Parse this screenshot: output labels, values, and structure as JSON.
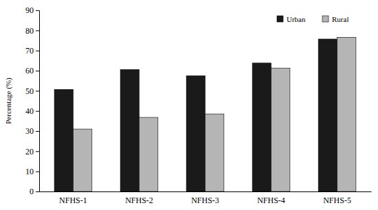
{
  "chart_data": {
    "type": "bar",
    "categories": [
      "NFHS-1",
      "NFHS-2",
      "NFHS-3",
      "NFHS-4",
      "NFHS-5"
    ],
    "series": [
      {
        "name": "Urban",
        "color": "#1a1a1a",
        "values": [
          50.7,
          60.6,
          57.5,
          63.8,
          75.7
        ]
      },
      {
        "name": "Rural",
        "color": "#b5b5b5",
        "values": [
          31.0,
          36.8,
          38.5,
          61.3,
          76.6
        ]
      }
    ],
    "y_label": "Percentage (%)",
    "ylim": [
      0,
      90
    ],
    "yticks": [
      0,
      10,
      20,
      30,
      40,
      50,
      60,
      70,
      80,
      90
    ],
    "legend": "upper right",
    "grid": false
  }
}
